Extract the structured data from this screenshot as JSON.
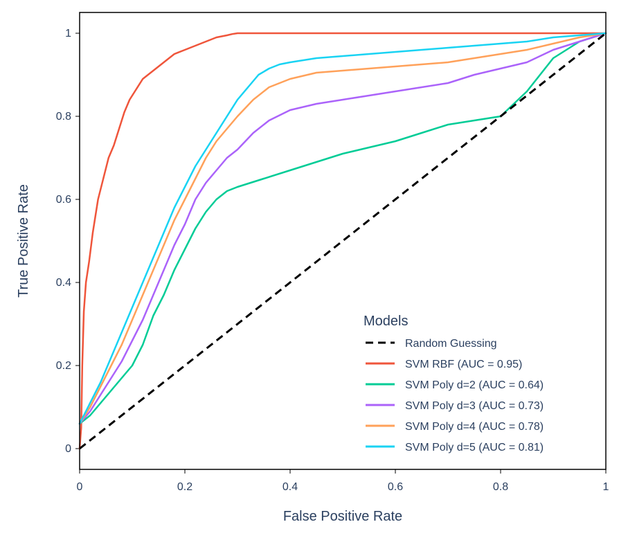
{
  "chart_data": {
    "type": "line",
    "title": "",
    "xlabel": "False Positive Rate",
    "ylabel": "True Positive Rate",
    "xlim": [
      0,
      1
    ],
    "ylim": [
      -0.05,
      1.05
    ],
    "x_ticks": [
      {
        "value": 0,
        "label": "0"
      },
      {
        "value": 0.2,
        "label": "0.2"
      },
      {
        "value": 0.4,
        "label": "0.4"
      },
      {
        "value": 0.6,
        "label": "0.6"
      },
      {
        "value": 0.8,
        "label": "0.8"
      },
      {
        "value": 1,
        "label": "1"
      }
    ],
    "y_ticks": [
      {
        "value": 0,
        "label": "0"
      },
      {
        "value": 0.2,
        "label": "0.2"
      },
      {
        "value": 0.4,
        "label": "0.4"
      },
      {
        "value": 0.6,
        "label": "0.6"
      },
      {
        "value": 0.8,
        "label": "0.8"
      },
      {
        "value": 1,
        "label": "1"
      }
    ],
    "grid": false,
    "legend": {
      "title": "Models",
      "placement": "bottom-right"
    },
    "series": [
      {
        "name": "Random Guessing",
        "color": "#000000",
        "dash": "dashed",
        "x": [
          0,
          1
        ],
        "y": [
          0,
          1
        ]
      },
      {
        "name": "SVM RBF (AUC = 0.95)",
        "color": "#ef553b",
        "x": [
          0,
          0.003,
          0.005,
          0.008,
          0.012,
          0.018,
          0.025,
          0.035,
          0.045,
          0.055,
          0.065,
          0.075,
          0.085,
          0.095,
          0.105,
          0.12,
          0.14,
          0.16,
          0.18,
          0.2,
          0.23,
          0.26,
          0.28,
          0.29,
          0.3,
          0.4,
          0.6,
          0.8,
          1
        ],
        "y": [
          0,
          0.05,
          0.2,
          0.33,
          0.4,
          0.45,
          0.52,
          0.6,
          0.65,
          0.7,
          0.73,
          0.77,
          0.81,
          0.84,
          0.86,
          0.89,
          0.91,
          0.93,
          0.95,
          0.96,
          0.975,
          0.99,
          0.995,
          0.998,
          1,
          1,
          1,
          1,
          1
        ]
      },
      {
        "name": "SVM Poly d=2 (AUC = 0.64)",
        "color": "#00cc96",
        "x": [
          0,
          0.02,
          0.04,
          0.06,
          0.08,
          0.1,
          0.12,
          0.14,
          0.16,
          0.18,
          0.2,
          0.22,
          0.24,
          0.26,
          0.28,
          0.3,
          0.35,
          0.4,
          0.45,
          0.5,
          0.55,
          0.6,
          0.65,
          0.7,
          0.75,
          0.8,
          0.85,
          0.9,
          0.95,
          1
        ],
        "y": [
          0.06,
          0.08,
          0.11,
          0.14,
          0.17,
          0.2,
          0.25,
          0.32,
          0.37,
          0.43,
          0.48,
          0.53,
          0.57,
          0.6,
          0.62,
          0.63,
          0.65,
          0.67,
          0.69,
          0.71,
          0.725,
          0.74,
          0.76,
          0.78,
          0.79,
          0.8,
          0.86,
          0.94,
          0.98,
          1
        ]
      },
      {
        "name": "SVM Poly d=3 (AUC = 0.73)",
        "color": "#ab63fa",
        "x": [
          0,
          0.02,
          0.04,
          0.06,
          0.08,
          0.1,
          0.12,
          0.14,
          0.16,
          0.18,
          0.2,
          0.22,
          0.24,
          0.26,
          0.28,
          0.3,
          0.33,
          0.36,
          0.4,
          0.45,
          0.5,
          0.55,
          0.6,
          0.65,
          0.7,
          0.75,
          0.8,
          0.85,
          0.9,
          0.95,
          1
        ],
        "y": [
          0.06,
          0.09,
          0.13,
          0.17,
          0.21,
          0.26,
          0.31,
          0.37,
          0.43,
          0.49,
          0.54,
          0.6,
          0.64,
          0.67,
          0.7,
          0.72,
          0.76,
          0.79,
          0.815,
          0.83,
          0.84,
          0.85,
          0.86,
          0.87,
          0.88,
          0.9,
          0.915,
          0.93,
          0.96,
          0.98,
          1
        ]
      },
      {
        "name": "SVM Poly d=4 (AUC = 0.78)",
        "color": "#ffa15a",
        "x": [
          0,
          0.02,
          0.04,
          0.06,
          0.08,
          0.1,
          0.12,
          0.14,
          0.16,
          0.18,
          0.2,
          0.22,
          0.24,
          0.26,
          0.28,
          0.3,
          0.33,
          0.36,
          0.4,
          0.45,
          0.5,
          0.55,
          0.6,
          0.65,
          0.7,
          0.75,
          0.8,
          0.85,
          0.9,
          0.95,
          1
        ],
        "y": [
          0.06,
          0.1,
          0.15,
          0.2,
          0.25,
          0.31,
          0.37,
          0.43,
          0.49,
          0.55,
          0.6,
          0.65,
          0.7,
          0.74,
          0.77,
          0.8,
          0.84,
          0.87,
          0.89,
          0.905,
          0.91,
          0.915,
          0.92,
          0.925,
          0.93,
          0.94,
          0.95,
          0.96,
          0.975,
          0.99,
          1
        ]
      },
      {
        "name": "SVM Poly d=5 (AUC = 0.81)",
        "color": "#19d3f3",
        "x": [
          0,
          0.02,
          0.04,
          0.06,
          0.08,
          0.1,
          0.12,
          0.14,
          0.16,
          0.18,
          0.2,
          0.22,
          0.24,
          0.26,
          0.28,
          0.3,
          0.32,
          0.34,
          0.36,
          0.38,
          0.4,
          0.45,
          0.5,
          0.55,
          0.6,
          0.65,
          0.7,
          0.75,
          0.8,
          0.85,
          0.9,
          0.95,
          1
        ],
        "y": [
          0.06,
          0.11,
          0.16,
          0.22,
          0.28,
          0.34,
          0.4,
          0.46,
          0.52,
          0.58,
          0.63,
          0.68,
          0.72,
          0.76,
          0.8,
          0.84,
          0.87,
          0.9,
          0.915,
          0.925,
          0.93,
          0.94,
          0.945,
          0.95,
          0.955,
          0.96,
          0.965,
          0.97,
          0.975,
          0.98,
          0.99,
          0.995,
          1
        ]
      }
    ]
  }
}
